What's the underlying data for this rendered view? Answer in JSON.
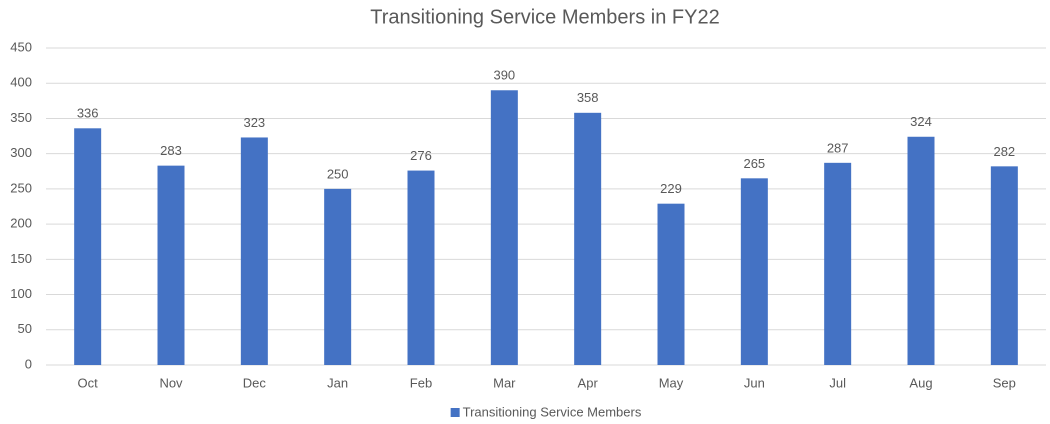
{
  "chart_data": {
    "type": "bar",
    "title": "Transitioning Service Members in FY22",
    "categories": [
      "Oct",
      "Nov",
      "Dec",
      "Jan",
      "Feb",
      "Mar",
      "Apr",
      "May",
      "Jun",
      "Jul",
      "Aug",
      "Sep"
    ],
    "series": [
      {
        "name": "Transitioning Service Members",
        "color": "#4472c4",
        "values": [
          336,
          283,
          323,
          250,
          276,
          390,
          358,
          229,
          265,
          287,
          324,
          282
        ]
      }
    ],
    "ylim": [
      0,
      450
    ],
    "yticks": [
      0,
      50,
      100,
      150,
      200,
      250,
      300,
      350,
      400,
      450
    ],
    "grid": true,
    "legend": "bottom"
  }
}
